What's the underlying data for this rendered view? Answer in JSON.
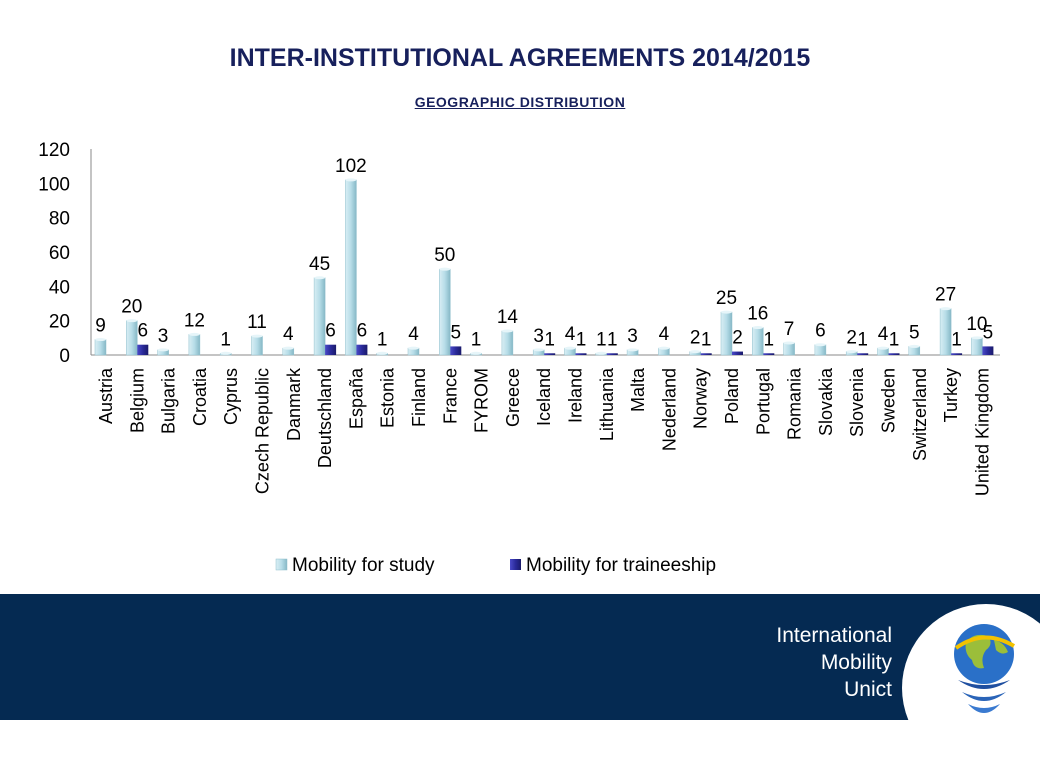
{
  "title": "INTER-INSTITUTIONAL  AGREEMENTS 2014/2015",
  "subtitle": "GEOGRAPHIC  DISTRIBUTION",
  "footer": {
    "line1": "International",
    "line2": "Mobility",
    "line3": "Unict"
  },
  "colors": {
    "study": "#b7dde8",
    "traineeship": "#2a2a9a",
    "title": "#17205c",
    "footer_bg": "#052a52"
  },
  "chart_data": {
    "type": "bar",
    "categories": [
      "Austria",
      "Belgium",
      "Bulgaria",
      "Croatia",
      "Cyprus",
      "Czech Republic",
      "Danmark",
      "Deutschland",
      "España",
      "Estonia",
      "Finland",
      "France",
      "FYROM",
      "Greece",
      "Iceland",
      "Ireland",
      "Lithuania",
      "Malta",
      "Nederland",
      "Norway",
      "Poland",
      "Portugal",
      "Romania",
      "Slovakia",
      "Slovenia",
      "Sweden",
      "Switzerland",
      "Turkey",
      "United Kingdom"
    ],
    "series": [
      {
        "name": "Mobility for study",
        "values": [
          9,
          20,
          3,
          12,
          1,
          11,
          4,
          45,
          102,
          1,
          4,
          50,
          1,
          14,
          3,
          4,
          1,
          3,
          4,
          2,
          25,
          16,
          7,
          6,
          2,
          4,
          5,
          27,
          10
        ]
      },
      {
        "name": "Mobility for traineeship",
        "values": [
          null,
          6,
          null,
          null,
          null,
          null,
          null,
          6,
          6,
          null,
          null,
          5,
          null,
          null,
          1,
          1,
          1,
          null,
          null,
          1,
          2,
          1,
          null,
          null,
          1,
          1,
          null,
          1,
          5
        ]
      }
    ],
    "yticks": [
      "0",
      "20",
      "40",
      "60",
      "80",
      "100",
      "120"
    ],
    "ylim": [
      0,
      120
    ],
    "legend": "bottom",
    "grid": false
  }
}
